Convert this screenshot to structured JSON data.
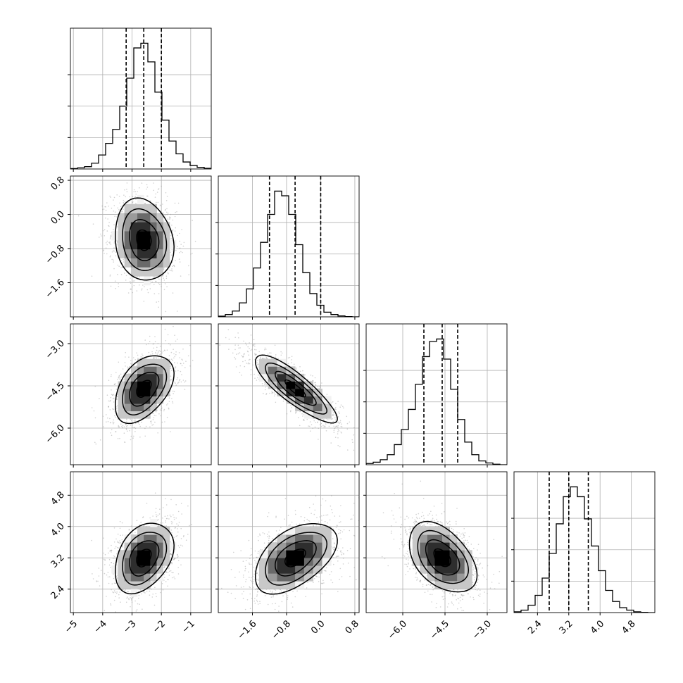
{
  "chart_data": {
    "type": "corner",
    "title": "",
    "grid": true,
    "colors": {
      "line": "#000000",
      "grid": "#b0b0b0",
      "scatter": "#9a9a9a",
      "density_levels": [
        "#f2f2f2",
        "#c8c8c8",
        "#9a9a9a",
        "#6a6a6a",
        "#2e2e2e",
        "#000000"
      ]
    },
    "parameters": [
      {
        "name": "p0",
        "label": "",
        "range": [
          -5.1,
          -0.3
        ],
        "ticks": [
          -5,
          -4,
          -3,
          -2,
          -1
        ],
        "tick_labels": [
          "−5",
          "−4",
          "−3",
          "−2",
          "−1"
        ],
        "mean": -2.6,
        "sd": 0.5,
        "quantiles": [
          -3.2,
          -2.6,
          -2.0
        ],
        "histogram": {
          "bin_start": -5.1,
          "bin_width": 0.24,
          "counts": [
            0.2,
            0.5,
            1,
            2.5,
            6,
            11,
            17,
            27,
            39,
            52,
            54,
            46,
            33,
            21,
            12,
            6.5,
            3,
            1.5,
            0.7,
            0.3
          ]
        }
      },
      {
        "name": "p1",
        "label": "",
        "range": [
          -2.4,
          0.9
        ],
        "ticks": [
          -1.6,
          -0.8,
          0.0,
          0.8
        ],
        "tick_labels": [
          "−1.6",
          "−0.8",
          "0.0",
          "0.8"
        ],
        "mean": -0.6,
        "sd": 0.48,
        "quantiles": [
          -1.2,
          -0.6,
          0.0
        ],
        "histogram": {
          "bin_start": -2.4,
          "bin_width": 0.165,
          "counts": [
            0.3,
            1,
            2.5,
            6,
            12,
            21,
            32,
            44,
            54,
            52,
            44,
            31,
            19,
            10,
            5,
            2,
            1,
            0.4,
            0.1,
            0
          ]
        }
      },
      {
        "name": "p2",
        "label": "",
        "range": [
          -7.3,
          -2.3
        ],
        "ticks": [
          -6.0,
          -4.5,
          -3.0
        ],
        "tick_labels": [
          "−6.0",
          "−4.5",
          "−3.0"
        ],
        "mean": -4.6,
        "sd": 0.6,
        "quantiles": [
          -5.25,
          -4.6,
          -4.05
        ],
        "histogram": {
          "bin_start": -7.3,
          "bin_width": 0.25,
          "counts": [
            0.5,
            1,
            2,
            4,
            8,
            14,
            22,
            32,
            43,
            49,
            50,
            42,
            30,
            18,
            9,
            4,
            1.5,
            0.7,
            0.2,
            0
          ]
        }
      },
      {
        "name": "p3",
        "label": "",
        "range": [
          1.8,
          5.4
        ],
        "ticks": [
          2.4,
          3.2,
          4.0,
          4.8
        ],
        "tick_labels": [
          "2.4",
          "3.2",
          "4.0",
          "4.8"
        ],
        "mean": 3.2,
        "sd": 0.45,
        "quantiles": [
          2.7,
          3.2,
          3.7
        ],
        "histogram": {
          "bin_start": 1.8,
          "bin_width": 0.18,
          "counts": [
            0.3,
            1,
            3,
            7,
            14,
            24,
            36,
            47,
            51,
            47,
            38,
            27,
            17,
            9,
            4.5,
            2,
            1,
            0.3,
            0.1,
            0
          ]
        }
      }
    ],
    "correlations": [
      [
        1.0,
        -0.15,
        0.45,
        0.35
      ],
      [
        -0.15,
        1.0,
        -0.85,
        0.5
      ],
      [
        0.45,
        -0.85,
        1.0,
        -0.45
      ],
      [
        0.35,
        0.5,
        -0.45,
        1.0
      ]
    ]
  }
}
